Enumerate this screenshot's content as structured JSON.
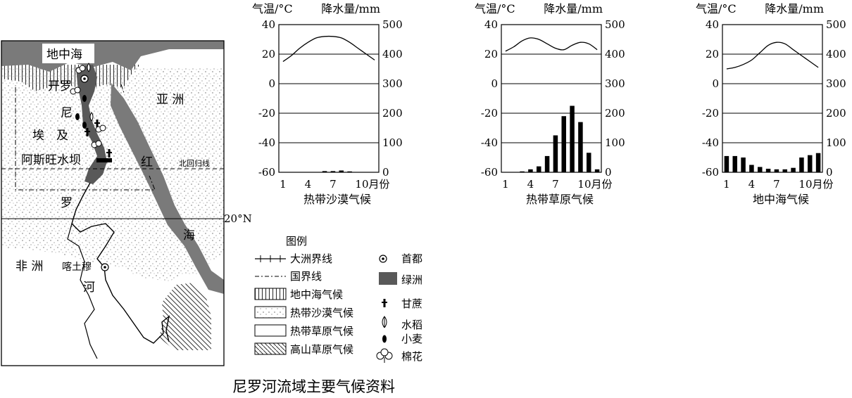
{
  "map": {
    "labels": {
      "sea_north": "地中海",
      "cairo": "开罗",
      "asia": "亚 洲",
      "egypt_1": "埃",
      "egypt_2": "及",
      "nile_1": "尼",
      "nile_2": "罗",
      "nile_3": "河",
      "dam": "阿斯旺水坝",
      "red_1": "红",
      "red_2": "海",
      "tropic": "北回归线",
      "africa": "非 洲",
      "khartoum": "喀土穆",
      "lat20": "20°N"
    }
  },
  "legend": {
    "title": "图例",
    "items": [
      {
        "key": "continent-border",
        "label": "大洲界线"
      },
      {
        "key": "national-border",
        "label": "国界线"
      },
      {
        "key": "mediterranean-climate",
        "label": "地中海气候"
      },
      {
        "key": "desert-climate",
        "label": "热带沙漠气候"
      },
      {
        "key": "savanna-climate",
        "label": "热带草原气候"
      },
      {
        "key": "highland-climate",
        "label": "高山草原气候"
      }
    ],
    "symbols": [
      {
        "key": "capital",
        "label": "首都"
      },
      {
        "key": "oasis",
        "label": "绿洲"
      },
      {
        "key": "sugarcane",
        "label": "甘蔗"
      },
      {
        "key": "rice",
        "label": "水稻"
      },
      {
        "key": "wheat",
        "label": "小麦"
      },
      {
        "key": "cotton",
        "label": "棉花"
      }
    ]
  },
  "caption": "尼罗河流域主要气候资料",
  "chart_data": [
    {
      "type": "bar+line",
      "title": "热带沙漠气候",
      "temp_label": "气温/°C",
      "precip_label": "降水量/mm",
      "x_tick_labels": [
        "1",
        "4",
        "7",
        "10月份"
      ],
      "x_ticks": [
        1,
        4,
        7,
        10
      ],
      "months": [
        1,
        2,
        3,
        4,
        5,
        6,
        7,
        8,
        9,
        10,
        11,
        12
      ],
      "temperature": [
        15,
        19,
        24,
        28,
        31,
        32,
        32,
        31,
        28,
        24,
        20,
        16
      ],
      "precipitation": [
        0,
        0,
        0,
        0,
        0,
        4,
        4,
        6,
        3,
        0,
        0,
        0
      ],
      "temp_ylim": [
        -60,
        40
      ],
      "temp_ticks": [
        40,
        20,
        0,
        -20,
        -40,
        -60
      ],
      "precip_ylim": [
        0,
        500
      ],
      "precip_ticks": [
        500,
        400,
        300,
        200,
        100,
        0
      ],
      "grid": true
    },
    {
      "type": "bar+line",
      "title": "热带草原气候",
      "temp_label": "气温/°C",
      "precip_label": "降水量/mm",
      "x_tick_labels": [
        "1",
        "4",
        "7",
        "10月份"
      ],
      "x_ticks": [
        1,
        4,
        7,
        10
      ],
      "months": [
        1,
        2,
        3,
        4,
        5,
        6,
        7,
        8,
        9,
        10,
        11,
        12
      ],
      "temperature": [
        22,
        25,
        29,
        31,
        30,
        27,
        24,
        23,
        26,
        28,
        27,
        23
      ],
      "precipitation": [
        0,
        0,
        3,
        10,
        20,
        55,
        125,
        190,
        225,
        170,
        66,
        10
      ],
      "temp_ylim": [
        -60,
        40
      ],
      "temp_ticks": [
        40,
        20,
        0,
        -20,
        -40,
        -60
      ],
      "precip_ylim": [
        0,
        500
      ],
      "precip_ticks": [
        500,
        400,
        300,
        200,
        100,
        0
      ],
      "grid": true
    },
    {
      "type": "bar+line",
      "title": "地中海气候",
      "temp_label": "气温/°C",
      "precip_label": "降水量/mm",
      "x_tick_labels": [
        "1",
        "4",
        "7",
        "10月份"
      ],
      "x_ticks": [
        1,
        4,
        7,
        10
      ],
      "months": [
        1,
        2,
        3,
        4,
        5,
        6,
        7,
        8,
        9,
        10,
        11,
        12
      ],
      "temperature": [
        10,
        11,
        13,
        16,
        21,
        26,
        28,
        27,
        23,
        19,
        15,
        11
      ],
      "precipitation": [
        55,
        55,
        50,
        25,
        18,
        12,
        10,
        10,
        15,
        50,
        58,
        65
      ],
      "temp_ylim": [
        -60,
        40
      ],
      "temp_ticks": [
        40,
        20,
        0,
        -20,
        -40,
        -60
      ],
      "precip_ylim": [
        0,
        500
      ],
      "precip_ticks": [
        500,
        400,
        300,
        200,
        100,
        0
      ],
      "grid": true
    }
  ]
}
